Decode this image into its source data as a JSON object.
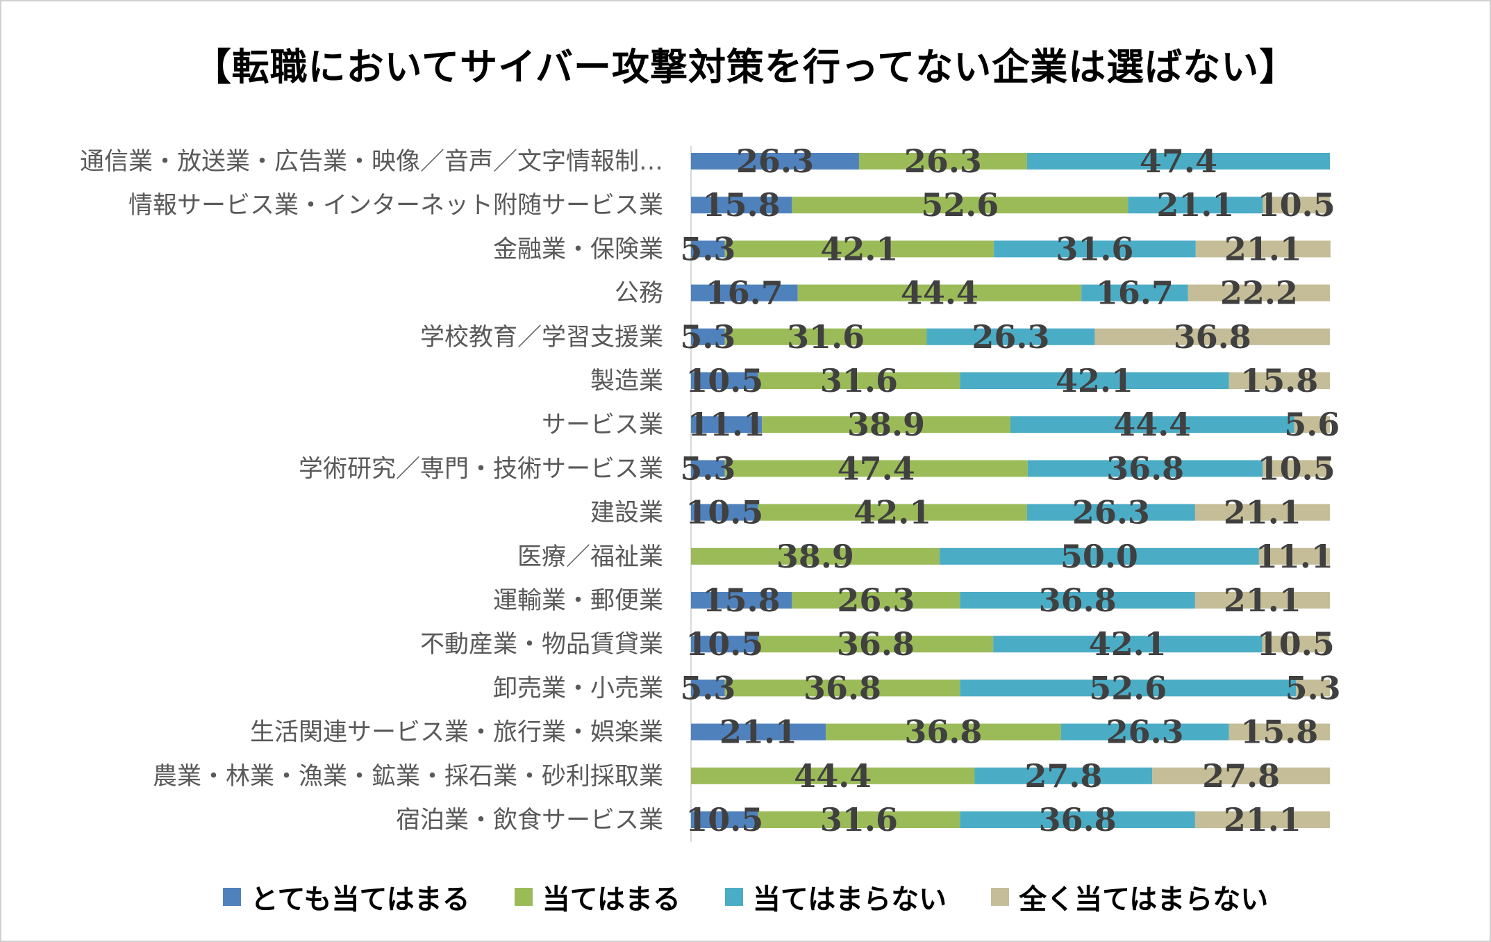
{
  "chart_data": {
    "type": "bar",
    "orientation": "horizontal",
    "stacked": true,
    "title": "【転職においてサイバー攻撃対策を行ってない企業は選ばない】",
    "xlabel": "",
    "ylabel": "",
    "xlim": [
      0,
      100
    ],
    "grid": false,
    "legend_position": "bottom",
    "categories": [
      "通信業・放送業・広告業・映像／音声／文字情報制…",
      "情報サービス業・インターネット附随サービス業",
      "金融業・保険業",
      "公務",
      "学校教育／学習支援業",
      "製造業",
      "サービス業",
      "学術研究／専門・技術サービス業",
      "建設業",
      "医療／福祉業",
      "運輸業・郵便業",
      "不動産業・物品賃貸業",
      "卸売業・小売業",
      "生活関連サービス業・旅行業・娯楽業",
      "農業・林業・漁業・鉱業・採石業・砂利採取業",
      "宿泊業・飲食サービス業"
    ],
    "series": [
      {
        "name": "とても当てはまる",
        "color": "#4f81bd",
        "values": [
          26.3,
          15.8,
          5.3,
          16.7,
          5.3,
          10.5,
          11.1,
          5.3,
          10.5,
          null,
          15.8,
          10.5,
          5.3,
          21.1,
          null,
          10.5
        ]
      },
      {
        "name": "当てはまる",
        "color": "#9bbb59",
        "values": [
          26.3,
          52.6,
          42.1,
          44.4,
          31.6,
          31.6,
          38.9,
          47.4,
          42.1,
          38.9,
          26.3,
          36.8,
          36.8,
          36.8,
          44.4,
          31.6
        ]
      },
      {
        "name": "当てはまらない",
        "color": "#4bacc6",
        "values": [
          47.4,
          21.1,
          31.6,
          16.7,
          26.3,
          42.1,
          44.4,
          36.8,
          26.3,
          50.0,
          36.8,
          42.1,
          52.6,
          26.3,
          27.8,
          36.8
        ]
      },
      {
        "name": "全く当てはまらない",
        "color": "#c4bd97",
        "values": [
          null,
          10.5,
          21.1,
          22.2,
          36.8,
          15.8,
          5.6,
          10.5,
          21.1,
          11.1,
          21.1,
          10.5,
          5.3,
          15.8,
          27.8,
          21.1
        ]
      }
    ]
  }
}
